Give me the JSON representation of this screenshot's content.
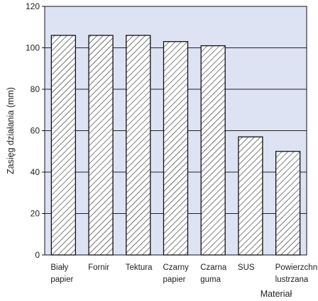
{
  "chart_data": {
    "type": "bar",
    "title": "",
    "ylabel": "Zasięg działania (mm)",
    "xlabel": "Materiał",
    "categories": [
      [
        "Biały",
        "papier"
      ],
      [
        "Fornir"
      ],
      [
        "Tektura"
      ],
      [
        "Czarny",
        "papier"
      ],
      [
        "Czarna",
        "guma"
      ],
      [
        "SUS"
      ],
      [
        "Powierzchnia",
        "lustrzana"
      ]
    ],
    "values": [
      106,
      106,
      106,
      103,
      101,
      57,
      50
    ],
    "ylim": [
      0,
      120
    ],
    "yticks": [
      0,
      20,
      40,
      60,
      80,
      100,
      120
    ],
    "grid": true,
    "bar_fill": "hatched",
    "colors": {
      "plot_background": "#dde3f3",
      "bar_fill": "#ffffff",
      "bar_stroke": "#111111",
      "grid": "#222222"
    }
  }
}
